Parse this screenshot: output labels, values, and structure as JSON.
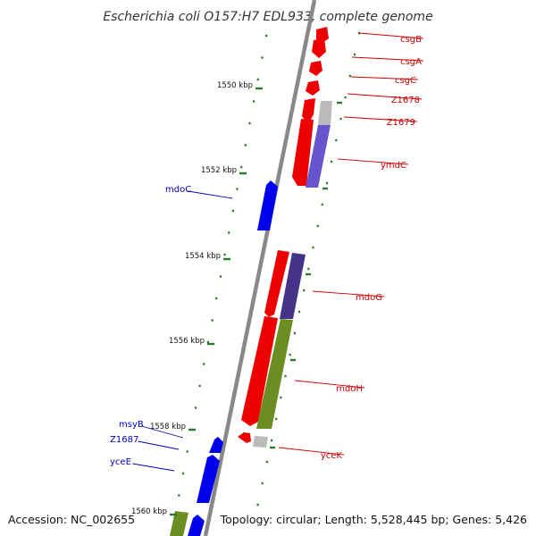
{
  "title": "Escherichia coli O157:H7 EDL933, complete genome",
  "footer": {
    "accession": "Accession: NC_002655",
    "topology": "Topology: circular; Length: 5,528,445 bp; Genes: 5,426"
  },
  "colors": {
    "backbone": "#888888",
    "tick": "#2a7a2a",
    "forward_label": "#cc0000",
    "reverse_label": "#0000bb",
    "gene_red": "#ee0000",
    "gene_blue": "#0000ee",
    "gene_purple": "#6655cc",
    "gene_darkpurple": "#443388",
    "gene_olive": "#6b8e23",
    "gene_grey": "#bbbbbb"
  },
  "kbp_ticks": [
    {
      "label": "1550 kbp",
      "kbp": 1550
    },
    {
      "label": "1552 kbp",
      "kbp": 1552
    },
    {
      "label": "1554 kbp",
      "kbp": 1554
    },
    {
      "label": "1556 kbp",
      "kbp": 1556
    },
    {
      "label": "1558 kbp",
      "kbp": 1558
    },
    {
      "label": "1560 kbp",
      "kbp": 1560
    }
  ],
  "forward_genes": [
    {
      "name": "csgB"
    },
    {
      "name": "csgA"
    },
    {
      "name": "csgC"
    },
    {
      "name": "Z1678"
    },
    {
      "name": "Z1679"
    },
    {
      "name": "ymdC"
    },
    {
      "name": "mdoG"
    },
    {
      "name": "mdoH"
    },
    {
      "name": "yceK"
    }
  ],
  "reverse_genes": [
    {
      "name": "mdoC"
    },
    {
      "name": "msyB"
    },
    {
      "name": "Z1687"
    },
    {
      "name": "yceE"
    }
  ]
}
